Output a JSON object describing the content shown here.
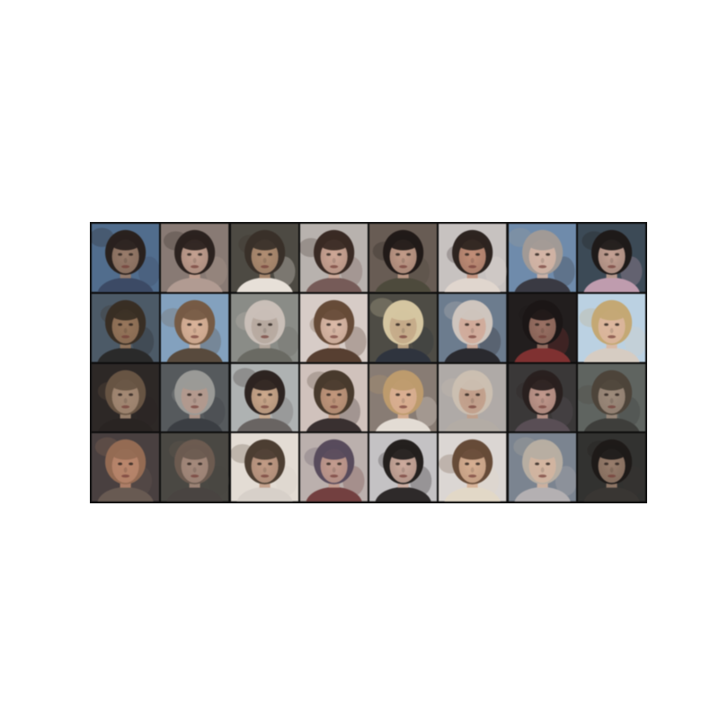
{
  "figure": {
    "rows": 4,
    "columns": 8,
    "border_color": "#0d0d0d",
    "page_background": "#ffffff"
  },
  "samples": [
    {
      "bg": "#4d6e93",
      "skin": "#9c7a66",
      "hair": "#2a211d",
      "cloth": "#3a4a6a"
    },
    {
      "bg": "#8a7a72",
      "skin": "#c99f8c",
      "hair": "#2c221e",
      "cloth": "#b49a90"
    },
    {
      "bg": "#4e4a42",
      "skin": "#b58c6c",
      "hair": "#3a3028",
      "cloth": "#e8e0d6"
    },
    {
      "bg": "#b9b2ad",
      "skin": "#d3a692",
      "hair": "#3b2a22",
      "cloth": "#7a5a56"
    },
    {
      "bg": "#6a5c52",
      "skin": "#c79a84",
      "hair": "#221a17",
      "cloth": "#4e4a3a"
    },
    {
      "bg": "#c8c2c0",
      "skin": "#c98c72",
      "hair": "#2e241f",
      "cloth": "#e2d6cc"
    },
    {
      "bg": "#6b8cb1",
      "skin": "#d9b4a2",
      "hair": "#a29a95",
      "cloth": "#3a3a44"
    },
    {
      "bg": "#3a4a58",
      "skin": "#c9a090",
      "hair": "#1f1a19",
      "cloth": "#c49ab0"
    },
    {
      "bg": "#4a5a6a",
      "skin": "#9c7556",
      "hair": "#3a2e22",
      "cloth": "#2a2a2a"
    },
    {
      "bg": "#7ea2c4",
      "skin": "#e0b294",
      "hair": "#7a5a40",
      "cloth": "#5a4a3a"
    },
    {
      "bg": "#8a8c86",
      "skin": "#b8a89c",
      "hair": "#cbbfb6",
      "cloth": "#6a6a62"
    },
    {
      "bg": "#d8ccc6",
      "skin": "#e0b9a4",
      "hair": "#6a4a34",
      "cloth": "#5a3e2e"
    },
    {
      "bg": "#4e4c44",
      "skin": "#c8a882",
      "hair": "#d8c69a",
      "cloth": "#2e3440"
    },
    {
      "bg": "#6a7c92",
      "skin": "#d6a894",
      "hair": "#cfc5bc",
      "cloth": "#2a2a30"
    },
    {
      "bg": "#231e1e",
      "skin": "#a07060",
      "hair": "#1c1616",
      "cloth": "#8a2e2e"
    },
    {
      "bg": "#b8d2e6",
      "skin": "#e2b69a",
      "hair": "#c8a86a",
      "cloth": "#d8ccc0"
    },
    {
      "bg": "#2e2826",
      "skin": "#a88870",
      "hair": "#6a5440",
      "cloth": "#2a2422"
    },
    {
      "bg": "#555a5e",
      "skin": "#b8988a",
      "hair": "#9a9a96",
      "cloth": "#3a3e44"
    },
    {
      "bg": "#aeb2b2",
      "skin": "#d2a886",
      "hair": "#2e2420",
      "cloth": "#6a6462"
    },
    {
      "bg": "#d2c2ba",
      "skin": "#c89676",
      "hair": "#4a3a2a",
      "cloth": "#3a3030"
    },
    {
      "bg": "#8a7c72",
      "skin": "#e0ae8c",
      "hair": "#c29a64",
      "cloth": "#e4dcd2"
    },
    {
      "bg": "#b0aaa6",
      "skin": "#c69c84",
      "hair": "#cdbfae",
      "cloth": "#b4aca4"
    },
    {
      "bg": "#3a3838",
      "skin": "#c8988a",
      "hair": "#2a201e",
      "cloth": "#5a4e56"
    },
    {
      "bg": "#5e6460",
      "skin": "#a08a78",
      "hair": "#4e4438",
      "cloth": "#3e3e3a"
    },
    {
      "bg": "#4a4040",
      "skin": "#c08466",
      "hair": "#9a6a4e",
      "cloth": "#6a5a50"
    },
    {
      "bg": "#4a4842",
      "skin": "#a88878",
      "hair": "#6e5a4e",
      "cloth": "#4a4440"
    },
    {
      "bg": "#e4dcd2",
      "skin": "#c69a80",
      "hair": "#4e3e30",
      "cloth": "#d8d0c8"
    },
    {
      "bg": "#bcb0ac",
      "skin": "#c89a8a",
      "hair": "#5a4a5e",
      "cloth": "#7a3e3e"
    },
    {
      "bg": "#c4c2c4",
      "skin": "#d2aa9a",
      "hair": "#24201e",
      "cloth": "#2e2a2a"
    },
    {
      "bg": "#dcd6d2",
      "skin": "#dcae8c",
      "hair": "#6a4a34",
      "cloth": "#e4d8c4"
    },
    {
      "bg": "#7a8492",
      "skin": "#d8b49c",
      "hair": "#b8aea0",
      "cloth": "#b4b0b2"
    },
    {
      "bg": "#323230",
      "skin": "#9c7c68",
      "hair": "#1e1a18",
      "cloth": "#3a3632"
    }
  ]
}
